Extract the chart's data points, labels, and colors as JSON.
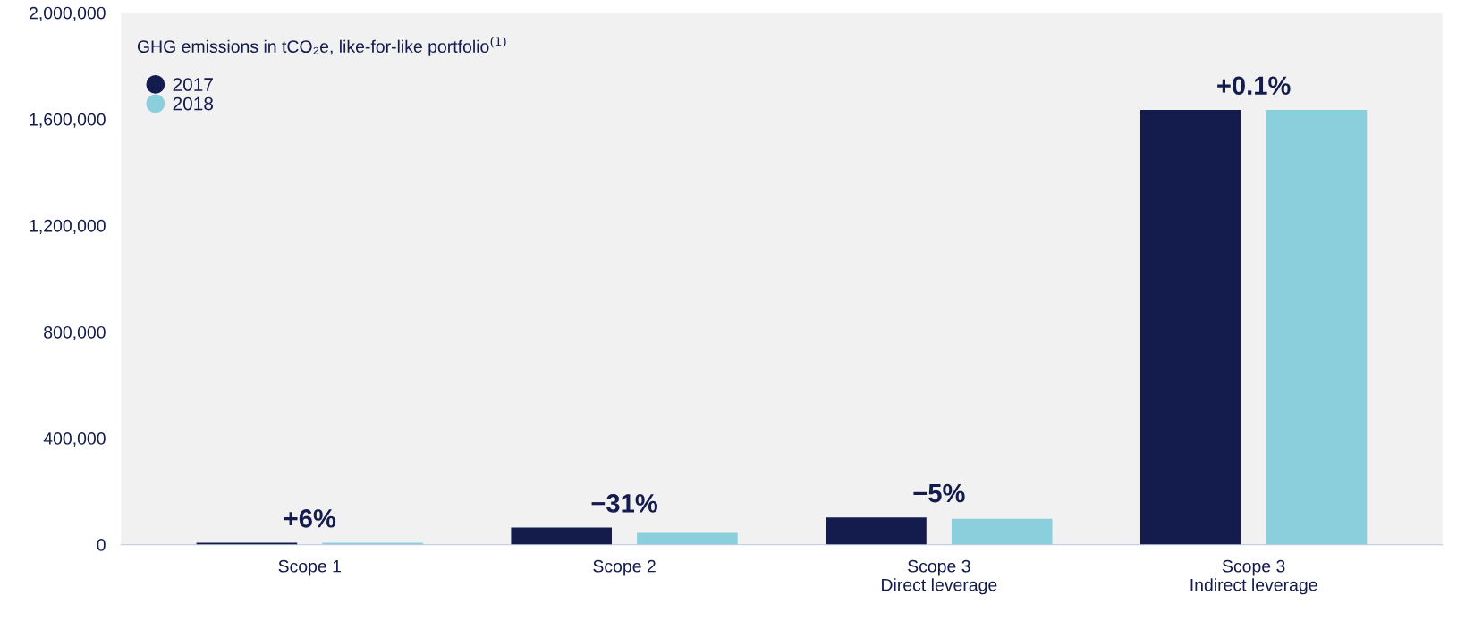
{
  "chart_data": {
    "type": "bar",
    "title": "GHG emissions in tCO₂e, like-for-like portfolio$^{(1)}$",
    "categories": [
      "Scope 1",
      "Scope 2",
      "Scope 3\nDirect leverage",
      "Scope 3\nIndirect leverage"
    ],
    "series": [
      {
        "name": "2017",
        "color": "#141b4d",
        "values": [
          7000,
          64000,
          102000,
          1635000
        ]
      },
      {
        "name": "2018",
        "color": "#8bcfdd",
        "values": [
          7000,
          44000,
          97000,
          1635000
        ]
      }
    ],
    "ylim": [
      0,
      2000000
    ],
    "yticks": [
      {
        "value": 0,
        "label": "0"
      },
      {
        "value": 400000,
        "label": "400,000"
      },
      {
        "value": 800000,
        "label": "800,000"
      },
      {
        "value": 1200000,
        "label": "1,200,000"
      },
      {
        "value": 1600000,
        "label": "1,600,000"
      },
      {
        "value": 2000000,
        "label": "2,000,000"
      }
    ],
    "annotations": [
      "+6%",
      "−31%",
      "−5%",
      "+0.1%"
    ],
    "legend": "top left",
    "grid": false
  }
}
